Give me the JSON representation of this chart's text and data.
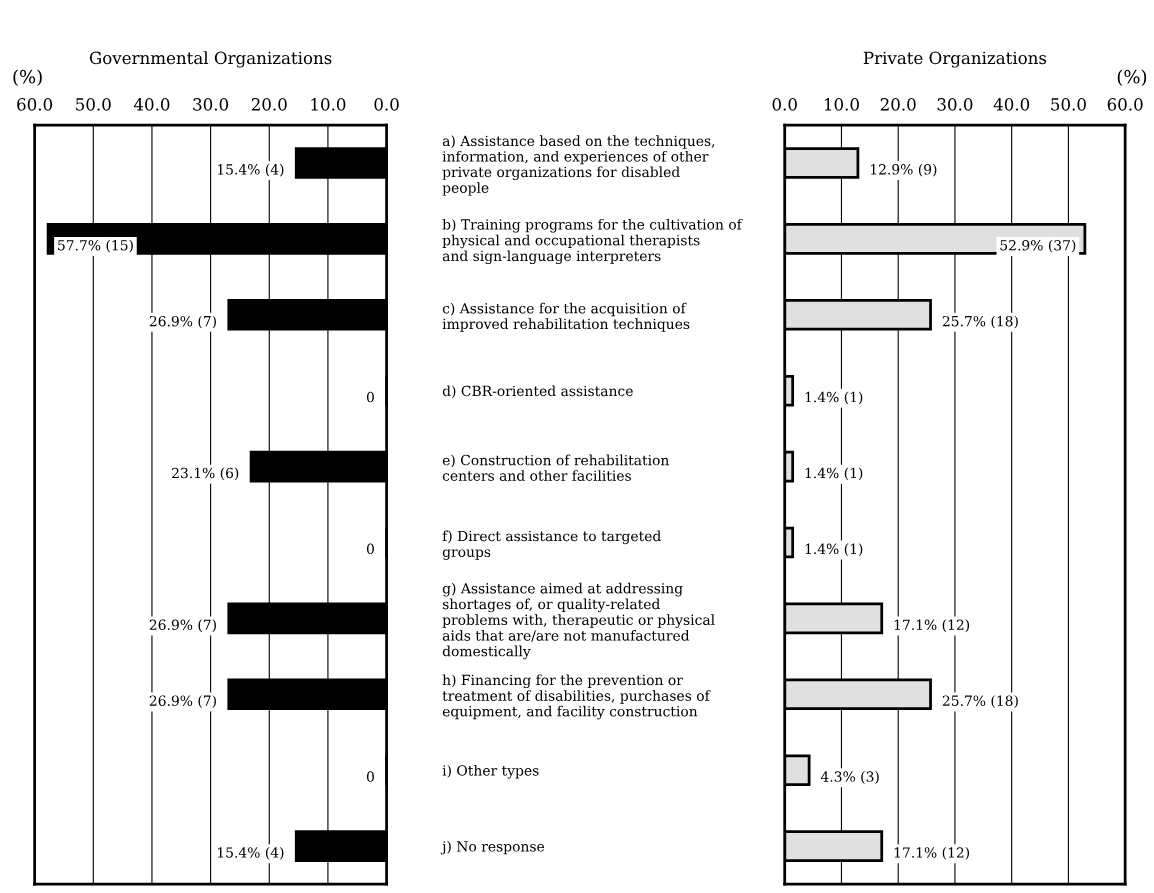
{
  "chart_data": [
    {
      "type": "bar",
      "orientation": "horizontal",
      "title": "Governmental Organizations",
      "xlabel": "(%)",
      "categories": [
        "a) Assistance based on the techniques,\ninformation, and experiences of other\nprivate organizations for disabled\npeople",
        "b) Training programs for the cultivation of\nphysical and occupational therapists\nand sign-language interpreters",
        "c) Assistance for the acquisition of\nimproved rehabilitation techniques",
        "d) CBR-oriented assistance",
        "e) Construction of rehabilitation\ncenters and other facilities",
        "f) Direct assistance to targeted\ngroups",
        "g) Assistance aimed at addressing\nshortages of, or quality-related\nproblems with, therapeutic or physical\naids that are/are not manufactured\ndomestically",
        "h) Financing for the prevention or\ntreatment of disabilities, purchases of\nequipment, and facility construction",
        "i) Other types",
        "j) No response"
      ],
      "values": [
        15.4,
        57.7,
        26.9,
        0,
        23.1,
        0,
        26.9,
        26.9,
        0,
        15.4
      ],
      "value_labels": [
        "15.4% (4)",
        "57.7% (15)",
        "26.9% (7)",
        "0",
        "23.1% (6)",
        "0",
        "26.9% (7)",
        "26.9% (7)",
        "0",
        "15.4% (4)"
      ],
      "color": "#000000",
      "xlim": [
        60,
        0
      ],
      "xticks": [
        {
          "value": 60,
          "label": "60.0"
        },
        {
          "value": 50,
          "label": "50.0"
        },
        {
          "value": 40,
          "label": "40.0"
        },
        {
          "value": 30,
          "label": "30.0"
        },
        {
          "value": 20,
          "label": "20.0"
        },
        {
          "value": 10,
          "label": "10.0"
        },
        {
          "value": 0,
          "label": "0.0"
        }
      ],
      "grid": "x"
    },
    {
      "type": "bar",
      "orientation": "horizontal",
      "title": "Private Organizations",
      "xlabel": "(%)",
      "values": [
        12.9,
        52.9,
        25.7,
        1.4,
        1.4,
        1.4,
        17.1,
        25.7,
        4.3,
        17.1
      ],
      "value_labels": [
        "12.9% (9)",
        "52.9% (37)",
        "25.7% (18)",
        "1.4% (1)",
        "1.4% (1)",
        "1.4% (1)",
        "17.1% (12)",
        "25.7% (18)",
        "4.3% (3)",
        "17.1% (12)"
      ],
      "color": "#e0e0e0",
      "xlim": [
        0,
        60
      ],
      "xticks": [
        {
          "value": 0,
          "label": "0.0"
        },
        {
          "value": 10,
          "label": "10.0"
        },
        {
          "value": 20,
          "label": "20.0"
        },
        {
          "value": 30,
          "label": "30.0"
        },
        {
          "value": 40,
          "label": "40.0"
        },
        {
          "value": 50,
          "label": "50.0"
        },
        {
          "value": 60,
          "label": "60.0"
        }
      ],
      "grid": "x"
    }
  ]
}
